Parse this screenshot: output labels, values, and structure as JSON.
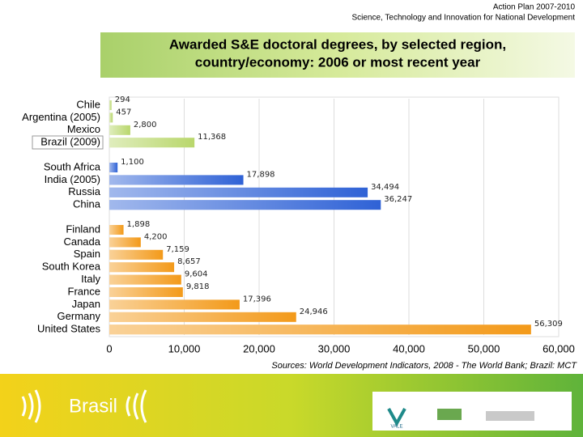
{
  "header": {
    "line1": "Action Plan 2007-2010",
    "line2": "Science, Technology and Innovation for National Development"
  },
  "chart_data": {
    "type": "bar",
    "orientation": "horizontal",
    "title": "Awarded S&E doctoral degrees, by selected region,",
    "title_line2": "country/economy: 2006 or most recent year",
    "categories": [
      "Chile",
      "Argentina (2005)",
      "Mexico",
      "Brazil (2009)",
      null,
      "South Africa",
      "India (2005)",
      "Russia",
      "China",
      null,
      "Finland",
      "Canada",
      "Spain",
      "South Korea",
      "Italy",
      "France",
      "Japan",
      "Germany",
      "United States"
    ],
    "values": [
      294,
      457,
      2800,
      11368,
      null,
      1100,
      17898,
      34494,
      36247,
      null,
      1898,
      4200,
      7159,
      8657,
      9604,
      9818,
      17396,
      24946,
      56309
    ],
    "value_labels": [
      "294",
      "457",
      "2,800",
      "11,368",
      null,
      "1,100",
      "17,898",
      "34,494",
      "36,247",
      null,
      "1,898",
      "4,200",
      "7,159",
      "8,657",
      "9,604",
      "9,818",
      "17,396",
      "24,946",
      "56,309"
    ],
    "colors": [
      "#b9d76c",
      "#b9d76c",
      "#b9d76c",
      "#b9d76c",
      null,
      "#2f62d6",
      "#2f62d6",
      "#2f62d6",
      "#2f62d6",
      null,
      "#f39a1a",
      "#f39a1a",
      "#f39a1a",
      "#f39a1a",
      "#f39a1a",
      "#f39a1a",
      "#f39a1a",
      "#f39a1a",
      "#f39a1a"
    ],
    "xlim": [
      0,
      60000
    ],
    "xticks": [
      0,
      {
        "value": 10000,
        "label": "10,000"
      },
      {
        "value": 20000,
        "label": "20,000"
      },
      {
        "value": 30000,
        "label": "30,000"
      },
      {
        "value": 40000,
        "label": "40,000"
      },
      {
        "value": 50000,
        "label": "50,000"
      },
      {
        "value": 60000,
        "label": "60,000"
      }
    ],
    "grid": true,
    "source": "Sources: World Development Indicators, 2008 - The World Bank; Brazil: MCT"
  },
  "footer": {
    "brand": "Brasil",
    "logo": "VALE"
  }
}
